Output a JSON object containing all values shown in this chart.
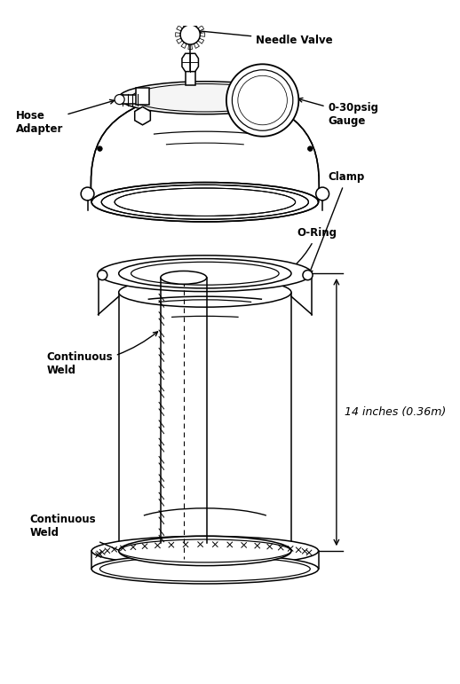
{
  "background_color": "#ffffff",
  "line_color": "#000000",
  "labels": {
    "needle_valve": "Needle Valve",
    "hose_adapter": "Hose\nAdapter",
    "gauge": "0-30psig\nGauge",
    "clamp": "Clamp",
    "o_ring": "O-Ring",
    "continuous_weld_top": "Continuous\nWeld",
    "continuous_weld_bottom": "Continuous\nWeld",
    "dimension": "14 inches (0.36m)"
  },
  "figsize": [
    5.18,
    7.71
  ],
  "dpi": 100,
  "lw": 1.1
}
